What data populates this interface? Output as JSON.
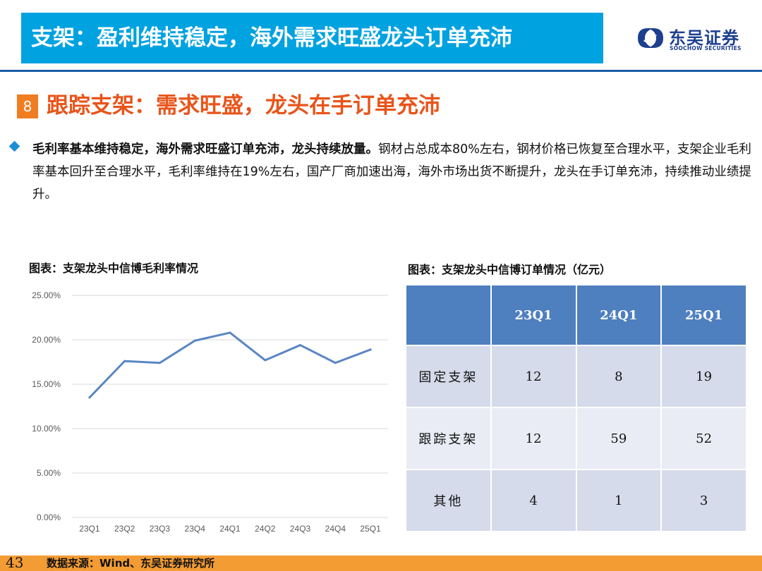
{
  "header": {
    "title": "支架：盈利维持稳定，海外需求旺盛龙头订单充沛",
    "logo_cn": "东吴证券",
    "logo_en": "SOOCHOW SECURITIES"
  },
  "section": {
    "number": "8",
    "title": "跟踪支架：需求旺盛，龙头在手订单充沛"
  },
  "bullet": {
    "bold": "毛利率基本维持稳定，海外需求旺盛订单充沛，龙头持续放量。",
    "text": "钢材占总成本80%左右，钢材价格已恢复至合理水平，支架企业毛利率基本回升至合理水平，毛利率维持在19%左右，国产厂商加速出海，海外市场出货不断提升，龙头在手订单充沛，持续推动业绩提升。"
  },
  "left_figure": {
    "title": "图表：支架龙头中信博毛利率情况"
  },
  "right_figure": {
    "title": "图表：支架龙头中信博订单情况（亿元）"
  },
  "chart_data": {
    "type": "line",
    "title": "",
    "x": [
      "23Q1",
      "23Q2",
      "23Q3",
      "23Q4",
      "24Q1",
      "24Q2",
      "24Q3",
      "24Q4",
      "25Q1"
    ],
    "series": [
      {
        "values": [
          13.5,
          17.6,
          17.4,
          19.9,
          20.8,
          17.7,
          19.4,
          17.4,
          18.9
        ]
      }
    ],
    "ylim": [
      0,
      25
    ],
    "yticks": [
      0,
      5,
      10,
      15,
      20,
      25
    ],
    "ytick_labels": [
      "0.00%",
      "5.00%",
      "10.00%",
      "15.00%",
      "20.00%",
      "25.00%"
    ],
    "grid": true,
    "line_color": "#5b86c4",
    "grid_color": "#d9d9d9"
  },
  "table": {
    "headers": [
      "",
      "23Q1",
      "24Q1",
      "25Q1"
    ],
    "rows": [
      {
        "label": "固定支架",
        "values": [
          "12",
          "8",
          "19"
        ]
      },
      {
        "label": "跟踪支架",
        "values": [
          "12",
          "59",
          "52"
        ]
      },
      {
        "label": "其他",
        "values": [
          "4",
          "1",
          "3"
        ]
      }
    ]
  },
  "footer": {
    "page": "43",
    "source": "数据来源：Wind、东吴证券研究所"
  },
  "colors": {
    "title_bar": "#00a2e0",
    "section_title": "#e8541a",
    "badge": "#f07d22",
    "footer": "#f39c34",
    "table_header": "#4e7fbf"
  }
}
